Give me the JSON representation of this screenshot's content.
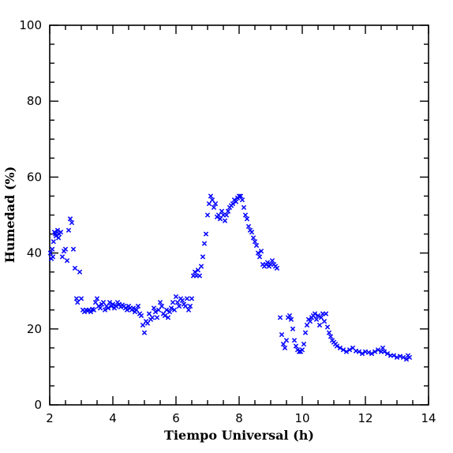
{
  "chart_data": {
    "type": "scatter",
    "xlabel": "Tiempo Universal (h)",
    "ylabel": "Humedad (%)",
    "xlim": [
      2,
      14
    ],
    "ylim": [
      0,
      100
    ],
    "x_ticks": [
      2,
      4,
      6,
      8,
      10,
      12,
      14
    ],
    "y_ticks": [
      0,
      20,
      40,
      60,
      80,
      100
    ],
    "x_tick_labels": [
      "2",
      "4",
      "6",
      "8",
      "10",
      "12",
      "14"
    ],
    "y_tick_labels": [
      "0",
      "20",
      "40",
      "60",
      "80",
      "100"
    ],
    "grid": false,
    "marker": "x",
    "marker_color": "#0000ff",
    "points": [
      [
        2.02,
        40
      ],
      [
        2.05,
        38.5
      ],
      [
        2.08,
        41
      ],
      [
        2.1,
        39
      ],
      [
        2.12,
        43
      ],
      [
        2.15,
        45.5
      ],
      [
        2.18,
        45
      ],
      [
        2.2,
        44.5
      ],
      [
        2.25,
        46
      ],
      [
        2.28,
        44
      ],
      [
        2.3,
        45
      ],
      [
        2.35,
        45.5
      ],
      [
        2.4,
        39
      ],
      [
        2.45,
        40.5
      ],
      [
        2.5,
        41
      ],
      [
        2.55,
        38
      ],
      [
        2.6,
        46
      ],
      [
        2.65,
        49
      ],
      [
        2.7,
        48
      ],
      [
        2.75,
        41
      ],
      [
        2.8,
        36
      ],
      [
        2.85,
        28
      ],
      [
        2.88,
        27
      ],
      [
        2.95,
        35
      ],
      [
        3.0,
        28
      ],
      [
        3.05,
        25
      ],
      [
        3.1,
        24.5
      ],
      [
        3.15,
        25
      ],
      [
        3.2,
        24.8
      ],
      [
        3.25,
        25
      ],
      [
        3.3,
        24.5
      ],
      [
        3.35,
        25.2
      ],
      [
        3.4,
        25
      ],
      [
        3.45,
        27
      ],
      [
        3.5,
        28
      ],
      [
        3.55,
        26
      ],
      [
        3.6,
        25.5
      ],
      [
        3.65,
        26.5
      ],
      [
        3.7,
        27
      ],
      [
        3.75,
        25
      ],
      [
        3.8,
        26
      ],
      [
        3.85,
        25.5
      ],
      [
        3.9,
        27
      ],
      [
        3.95,
        26
      ],
      [
        4.0,
        26.5
      ],
      [
        4.05,
        25.5
      ],
      [
        4.1,
        26
      ],
      [
        4.15,
        27
      ],
      [
        4.2,
        26.5
      ],
      [
        4.25,
        25.8
      ],
      [
        4.3,
        26.3
      ],
      [
        4.35,
        26
      ],
      [
        4.4,
        25.5
      ],
      [
        4.45,
        25
      ],
      [
        4.5,
        26
      ],
      [
        4.55,
        25.5
      ],
      [
        4.6,
        25
      ],
      [
        4.65,
        25.5
      ],
      [
        4.7,
        24.5
      ],
      [
        4.75,
        25
      ],
      [
        4.8,
        26
      ],
      [
        4.85,
        24
      ],
      [
        4.9,
        23.5
      ],
      [
        4.95,
        21
      ],
      [
        5.0,
        19
      ],
      [
        5.05,
        22
      ],
      [
        5.1,
        21.5
      ],
      [
        5.15,
        24
      ],
      [
        5.2,
        22.5
      ],
      [
        5.25,
        23
      ],
      [
        5.3,
        25.5
      ],
      [
        5.35,
        24.5
      ],
      [
        5.4,
        23
      ],
      [
        5.45,
        25
      ],
      [
        5.5,
        27
      ],
      [
        5.55,
        26
      ],
      [
        5.6,
        24
      ],
      [
        5.65,
        23.5
      ],
      [
        5.7,
        25
      ],
      [
        5.75,
        23
      ],
      [
        5.8,
        24.5
      ],
      [
        5.85,
        25.5
      ],
      [
        5.9,
        27
      ],
      [
        5.95,
        25
      ],
      [
        6.0,
        28.5
      ],
      [
        6.05,
        27
      ],
      [
        6.1,
        26
      ],
      [
        6.15,
        28
      ],
      [
        6.2,
        27.5
      ],
      [
        6.25,
        26.5
      ],
      [
        6.3,
        26
      ],
      [
        6.35,
        28
      ],
      [
        6.4,
        25
      ],
      [
        6.45,
        26
      ],
      [
        6.5,
        28
      ],
      [
        6.55,
        34
      ],
      [
        6.6,
        35
      ],
      [
        6.65,
        34
      ],
      [
        6.7,
        35.5
      ],
      [
        6.75,
        34
      ],
      [
        6.8,
        36.5
      ],
      [
        6.85,
        39
      ],
      [
        6.9,
        42.5
      ],
      [
        6.95,
        45
      ],
      [
        7.0,
        50
      ],
      [
        7.05,
        53
      ],
      [
        7.1,
        55
      ],
      [
        7.15,
        54
      ],
      [
        7.2,
        52
      ],
      [
        7.25,
        53
      ],
      [
        7.3,
        49.5
      ],
      [
        7.35,
        50
      ],
      [
        7.4,
        49
      ],
      [
        7.45,
        51
      ],
      [
        7.5,
        50
      ],
      [
        7.55,
        48.5
      ],
      [
        7.6,
        50
      ],
      [
        7.65,
        51
      ],
      [
        7.7,
        52
      ],
      [
        7.75,
        52.5
      ],
      [
        7.8,
        53
      ],
      [
        7.85,
        54
      ],
      [
        7.9,
        53.5
      ],
      [
        7.95,
        54.5
      ],
      [
        8.0,
        55
      ],
      [
        8.05,
        55
      ],
      [
        8.1,
        54
      ],
      [
        8.15,
        52
      ],
      [
        8.2,
        50
      ],
      [
        8.25,
        49
      ],
      [
        8.3,
        47
      ],
      [
        8.35,
        46
      ],
      [
        8.4,
        45.5
      ],
      [
        8.45,
        44
      ],
      [
        8.5,
        43
      ],
      [
        8.55,
        42
      ],
      [
        8.6,
        40
      ],
      [
        8.65,
        39
      ],
      [
        8.7,
        40.5
      ],
      [
        8.75,
        37
      ],
      [
        8.8,
        36.5
      ],
      [
        8.85,
        37
      ],
      [
        8.9,
        37.5
      ],
      [
        8.95,
        36.5
      ],
      [
        9.0,
        37
      ],
      [
        9.05,
        38
      ],
      [
        9.1,
        37
      ],
      [
        9.15,
        36.5
      ],
      [
        9.2,
        36
      ],
      [
        9.3,
        23
      ],
      [
        9.35,
        18.5
      ],
      [
        9.4,
        16
      ],
      [
        9.45,
        15
      ],
      [
        9.5,
        17
      ],
      [
        9.55,
        23
      ],
      [
        9.6,
        23.5
      ],
      [
        9.65,
        22.5
      ],
      [
        9.7,
        20
      ],
      [
        9.75,
        17
      ],
      [
        9.8,
        15.5
      ],
      [
        9.85,
        14.5
      ],
      [
        9.9,
        14
      ],
      [
        9.95,
        14
      ],
      [
        10.0,
        14.5
      ],
      [
        10.05,
        16
      ],
      [
        10.1,
        19
      ],
      [
        10.15,
        21
      ],
      [
        10.2,
        22.5
      ],
      [
        10.25,
        22
      ],
      [
        10.3,
        23
      ],
      [
        10.35,
        23.5
      ],
      [
        10.4,
        24
      ],
      [
        10.45,
        22.5
      ],
      [
        10.5,
        23.5
      ],
      [
        10.55,
        21
      ],
      [
        10.6,
        23
      ],
      [
        10.65,
        24
      ],
      [
        10.7,
        22
      ],
      [
        10.75,
        24
      ],
      [
        10.8,
        20.5
      ],
      [
        10.85,
        19
      ],
      [
        10.9,
        18
      ],
      [
        10.95,
        17
      ],
      [
        11.0,
        16.5
      ],
      [
        11.05,
        16
      ],
      [
        11.1,
        15.5
      ],
      [
        11.2,
        15
      ],
      [
        11.3,
        14.5
      ],
      [
        11.4,
        14
      ],
      [
        11.5,
        14.5
      ],
      [
        11.6,
        15
      ],
      [
        11.7,
        14.2
      ],
      [
        11.8,
        14
      ],
      [
        11.9,
        13.5
      ],
      [
        12.0,
        14
      ],
      [
        12.1,
        13.8
      ],
      [
        12.2,
        13.5
      ],
      [
        12.3,
        14
      ],
      [
        12.4,
        14.5
      ],
      [
        12.5,
        14
      ],
      [
        12.55,
        15
      ],
      [
        12.6,
        14
      ],
      [
        12.7,
        13.5
      ],
      [
        12.8,
        13
      ],
      [
        12.9,
        13
      ],
      [
        13.0,
        12.5
      ],
      [
        13.1,
        12.8
      ],
      [
        13.2,
        12.5
      ],
      [
        13.3,
        12
      ],
      [
        13.35,
        13
      ],
      [
        13.4,
        12.5
      ]
    ]
  }
}
